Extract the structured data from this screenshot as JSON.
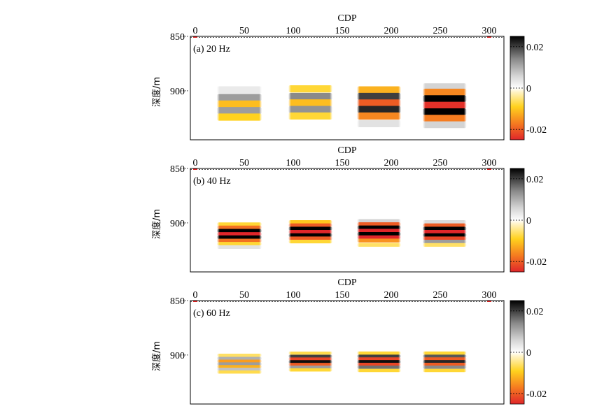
{
  "figure": {
    "colormap": {
      "stops": [
        {
          "v": -0.025,
          "color": "#e0262a"
        },
        {
          "v": -0.017,
          "color": "#f57c20"
        },
        {
          "v": -0.009,
          "color": "#ffd21e"
        },
        {
          "v": -0.002,
          "color": "#fff3c4"
        },
        {
          "v": 0.0,
          "color": "#ffffff"
        },
        {
          "v": 0.006,
          "color": "#d4d4d4"
        },
        {
          "v": 0.014,
          "color": "#8a8a8a"
        },
        {
          "v": 0.025,
          "color": "#000000"
        }
      ]
    }
  },
  "chart_data": [
    {
      "type": "heatmap",
      "title": "(a) 20 Hz",
      "xlabel": "CDP",
      "ylabel": "深度/m",
      "xlim": [
        -5,
        315
      ],
      "ylim": [
        850,
        945
      ],
      "xticks": [
        0,
        50,
        100,
        150,
        200,
        250,
        300
      ],
      "yticks": [
        850,
        900
      ],
      "colorbar": {
        "ticks": [
          0.02,
          0,
          -0.02
        ],
        "tick_labels": [
          "0.02",
          "0",
          "-0.02"
        ],
        "range": [
          -0.025,
          0.025
        ]
      },
      "blocks": [
        {
          "cdp_start": 22,
          "cdp_end": 68,
          "layers": [
            {
              "depth": 899,
              "amp": 0.003
            },
            {
              "depth": 906,
              "amp": 0.012
            },
            {
              "depth": 912,
              "amp": -0.011
            },
            {
              "depth": 918,
              "amp": 0.012
            },
            {
              "depth": 924,
              "amp": -0.009
            }
          ]
        },
        {
          "cdp_start": 95,
          "cdp_end": 140,
          "layers": [
            {
              "depth": 898,
              "amp": -0.008
            },
            {
              "depth": 905,
              "amp": 0.014
            },
            {
              "depth": 911,
              "amp": -0.011
            },
            {
              "depth": 917,
              "amp": 0.013
            },
            {
              "depth": 923,
              "amp": -0.008
            }
          ]
        },
        {
          "cdp_start": 165,
          "cdp_end": 210,
          "layers": [
            {
              "depth": 899,
              "amp": -0.012
            },
            {
              "depth": 905,
              "amp": 0.02
            },
            {
              "depth": 911,
              "amp": -0.02
            },
            {
              "depth": 917,
              "amp": 0.022
            },
            {
              "depth": 923,
              "amp": -0.016
            },
            {
              "depth": 930,
              "amp": 0.004
            }
          ]
        },
        {
          "cdp_start": 232,
          "cdp_end": 277,
          "layers": [
            {
              "depth": 896,
              "amp": 0.006
            },
            {
              "depth": 901,
              "amp": -0.016
            },
            {
              "depth": 907,
              "amp": 0.025
            },
            {
              "depth": 913,
              "amp": -0.024
            },
            {
              "depth": 919,
              "amp": 0.025
            },
            {
              "depth": 925,
              "amp": -0.017
            },
            {
              "depth": 931,
              "amp": 0.006
            }
          ]
        }
      ]
    },
    {
      "type": "heatmap",
      "title": "(b) 40 Hz",
      "xlabel": "CDP",
      "ylabel": "深度/m",
      "xlim": [
        -5,
        315
      ],
      "ylim": [
        850,
        945
      ],
      "xticks": [
        0,
        50,
        100,
        150,
        200,
        250,
        300
      ],
      "yticks": [
        850,
        900
      ],
      "colorbar": {
        "ticks": [
          0.02,
          0,
          -0.02
        ],
        "tick_labels": [
          "0.02",
          "0",
          "-0.02"
        ],
        "range": [
          -0.025,
          0.025
        ]
      },
      "blocks": [
        {
          "cdp_start": 22,
          "cdp_end": 68,
          "layers": [
            {
              "depth": 901,
              "amp": -0.008
            },
            {
              "depth": 904,
              "amp": -0.018
            },
            {
              "depth": 907,
              "amp": 0.025
            },
            {
              "depth": 910,
              "amp": -0.025
            },
            {
              "depth": 913,
              "amp": 0.025
            },
            {
              "depth": 916,
              "amp": -0.018
            },
            {
              "depth": 919,
              "amp": -0.008
            },
            {
              "depth": 922,
              "amp": 0.004
            }
          ]
        },
        {
          "cdp_start": 95,
          "cdp_end": 140,
          "layers": [
            {
              "depth": 899,
              "amp": -0.01
            },
            {
              "depth": 902,
              "amp": -0.02
            },
            {
              "depth": 905,
              "amp": 0.025
            },
            {
              "depth": 908,
              "amp": -0.025
            },
            {
              "depth": 911,
              "amp": 0.025
            },
            {
              "depth": 914,
              "amp": -0.02
            },
            {
              "depth": 917,
              "amp": -0.008
            }
          ]
        },
        {
          "cdp_start": 165,
          "cdp_end": 210,
          "layers": [
            {
              "depth": 898,
              "amp": 0.006
            },
            {
              "depth": 901,
              "amp": -0.02
            },
            {
              "depth": 904,
              "amp": 0.025
            },
            {
              "depth": 907,
              "amp": -0.025
            },
            {
              "depth": 910,
              "amp": 0.025
            },
            {
              "depth": 913,
              "amp": -0.025
            },
            {
              "depth": 916,
              "amp": -0.015
            },
            {
              "depth": 920,
              "amp": -0.006
            }
          ]
        },
        {
          "cdp_start": 232,
          "cdp_end": 277,
          "layers": [
            {
              "depth": 899,
              "amp": 0.005
            },
            {
              "depth": 902,
              "amp": -0.02
            },
            {
              "depth": 905,
              "amp": 0.025
            },
            {
              "depth": 908,
              "amp": -0.025
            },
            {
              "depth": 911,
              "amp": 0.025
            },
            {
              "depth": 914,
              "amp": -0.022
            },
            {
              "depth": 917,
              "amp": 0.012
            },
            {
              "depth": 920,
              "amp": -0.006
            }
          ]
        }
      ]
    },
    {
      "type": "heatmap",
      "title": "(c) 60 Hz",
      "xlabel": "CDP",
      "ylabel": "深度/m",
      "xlim": [
        -5,
        315
      ],
      "ylim": [
        850,
        945
      ],
      "xticks": [
        0,
        50,
        100,
        150,
        200,
        250,
        300
      ],
      "yticks": [
        850,
        900
      ],
      "colorbar": {
        "ticks": [
          0.02,
          0,
          -0.02
        ],
        "tick_labels": [
          "0.02",
          "0",
          "-0.02"
        ],
        "range": [
          -0.025,
          0.025
        ]
      },
      "blocks": [
        {
          "cdp_start": 22,
          "cdp_end": 68,
          "layers": [
            {
              "depth": 900,
              "amp": -0.006
            },
            {
              "depth": 903,
              "amp": 0.01
            },
            {
              "depth": 905.5,
              "amp": -0.014
            },
            {
              "depth": 908,
              "amp": 0.012
            },
            {
              "depth": 910.5,
              "amp": -0.012
            },
            {
              "depth": 913,
              "amp": 0.008
            },
            {
              "depth": 915.5,
              "amp": -0.007
            }
          ]
        },
        {
          "cdp_start": 95,
          "cdp_end": 140,
          "layers": [
            {
              "depth": 898,
              "amp": -0.007
            },
            {
              "depth": 901,
              "amp": 0.02
            },
            {
              "depth": 903.5,
              "amp": -0.022
            },
            {
              "depth": 906,
              "amp": 0.024
            },
            {
              "depth": 908.5,
              "amp": -0.02
            },
            {
              "depth": 911,
              "amp": 0.012
            },
            {
              "depth": 913.5,
              "amp": -0.008
            }
          ]
        },
        {
          "cdp_start": 165,
          "cdp_end": 210,
          "layers": [
            {
              "depth": 898,
              "amp": -0.008
            },
            {
              "depth": 901,
              "amp": 0.02
            },
            {
              "depth": 903.5,
              "amp": -0.022
            },
            {
              "depth": 906,
              "amp": 0.024
            },
            {
              "depth": 908.5,
              "amp": -0.022
            },
            {
              "depth": 911,
              "amp": 0.016
            },
            {
              "depth": 914,
              "amp": -0.008
            }
          ]
        },
        {
          "cdp_start": 232,
          "cdp_end": 277,
          "layers": [
            {
              "depth": 898,
              "amp": -0.008
            },
            {
              "depth": 901,
              "amp": 0.018
            },
            {
              "depth": 903.5,
              "amp": -0.02
            },
            {
              "depth": 906,
              "amp": 0.022
            },
            {
              "depth": 908.5,
              "amp": -0.02
            },
            {
              "depth": 911,
              "amp": 0.014
            },
            {
              "depth": 914,
              "amp": -0.008
            }
          ]
        }
      ]
    }
  ]
}
